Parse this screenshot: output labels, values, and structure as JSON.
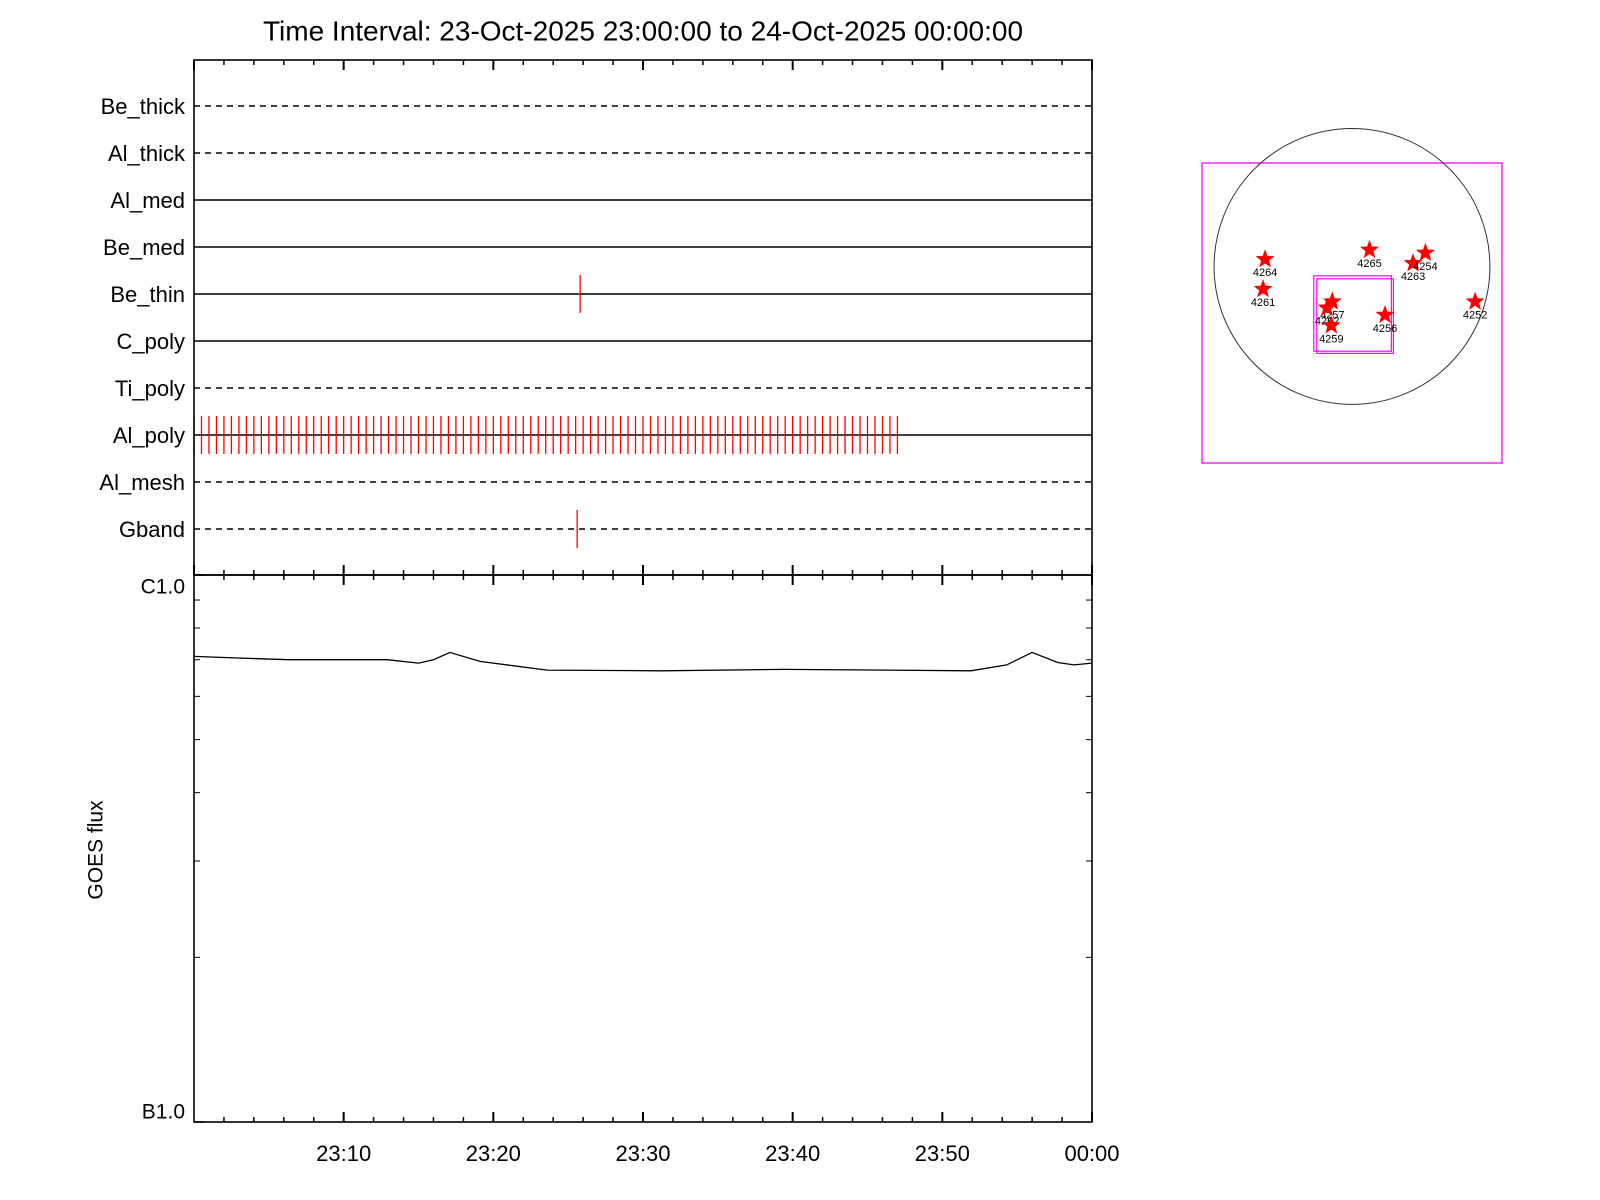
{
  "chart_data": [
    {
      "type": "timeline",
      "title": "Time Interval: 23-Oct-2025 23:00:00 to 24-Oct-2025 00:00:00",
      "categories": [
        "Be_thick",
        "Al_thick",
        "Al_med",
        "Be_med",
        "Be_thin",
        "C_poly",
        "Ti_poly",
        "Al_poly",
        "Al_mesh",
        "Gband"
      ],
      "line_styles": [
        "dashed",
        "dashed",
        "solid",
        "solid",
        "solid",
        "solid",
        "dashed",
        "solid",
        "dashed",
        "dashed"
      ],
      "events": [
        [],
        [],
        [],
        [],
        [
          25.8
        ],
        [],
        [],
        [
          0,
          0.5,
          1,
          1.5,
          2,
          2.5,
          3,
          3.5,
          4,
          4.5,
          5,
          5.5,
          6,
          6.5,
          7,
          7.5,
          8,
          8.5,
          9,
          9.5,
          10,
          10.5,
          11,
          11.5,
          12,
          12.5,
          13,
          13.5,
          14,
          14.5,
          15,
          15.5,
          16,
          16.5,
          17,
          17.5,
          18,
          18.5,
          19,
          19.5,
          20,
          20.5,
          21,
          21.5,
          22,
          22.5,
          23,
          23.5,
          24,
          24.5,
          25,
          25.5,
          26,
          26.5,
          27,
          27.5,
          28,
          28.5,
          29,
          29.5,
          30,
          30.5,
          31,
          31.5,
          32,
          32.5,
          33,
          33.5,
          34,
          34.5,
          35,
          35.5,
          36,
          36.5,
          37,
          37.5,
          38,
          38.5,
          39,
          39.5,
          40,
          40.5,
          41,
          41.5,
          42,
          42.5,
          43,
          43.5,
          44,
          44.5,
          45,
          45.5,
          46,
          46.5,
          47
        ],
        [],
        [
          25.6
        ]
      ],
      "event_color": "#ff0000",
      "xlim": [
        0,
        60
      ],
      "xticks": [
        0,
        10,
        20,
        30,
        40,
        50,
        60
      ],
      "x_minor_ticks": [
        2,
        4,
        6,
        8,
        12,
        14,
        16,
        18,
        22,
        24,
        26,
        28,
        32,
        34,
        36,
        38,
        42,
        44,
        46,
        48,
        52,
        54,
        56,
        58
      ]
    },
    {
      "type": "line",
      "ylabel": "GOES flux",
      "log_y": true,
      "color": "#000000",
      "x": [
        0,
        2.9,
        6.3,
        9.8,
        12.9,
        15,
        16,
        17.1,
        19.1,
        23.6,
        31.2,
        39.4,
        46.3,
        51.9,
        54.3,
        56,
        57.7,
        58.8,
        60
      ],
      "values": [
        7.1e-07,
        7.05e-07,
        7e-07,
        7e-07,
        7e-07,
        6.9e-07,
        7e-07,
        7.22e-07,
        6.95e-07,
        6.7e-07,
        6.68e-07,
        6.72e-07,
        6.7e-07,
        6.68e-07,
        6.85e-07,
        7.22e-07,
        6.92e-07,
        6.85e-07,
        6.9e-07
      ],
      "xlim": [
        0,
        60
      ],
      "xticks": [
        {
          "value": 10,
          "label": "23:10"
        },
        {
          "value": 20,
          "label": "23:20"
        },
        {
          "value": 30,
          "label": "23:30"
        },
        {
          "value": 40,
          "label": "23:40"
        },
        {
          "value": 50,
          "label": "23:50"
        },
        {
          "value": 60,
          "label": "00:00"
        }
      ],
      "x_minor_ticks": [
        2,
        4,
        6,
        8,
        12,
        14,
        16,
        18,
        22,
        24,
        26,
        28,
        32,
        34,
        36,
        38,
        42,
        44,
        46,
        48,
        52,
        54,
        56,
        58
      ],
      "ylim": [
        1e-07,
        1e-06
      ],
      "yticks": [
        {
          "value": 1e-06,
          "label": "C1.0"
        },
        {
          "value": 1e-07,
          "label": "B1.0"
        }
      ],
      "y_minor_ticks": [
        2e-07,
        3e-07,
        4e-07,
        5e-07,
        6e-07,
        7e-07,
        8e-07,
        9e-07
      ]
    },
    {
      "type": "map",
      "xlim": [
        -1044,
        1044
      ],
      "ylim": [
        -1368,
        720
      ],
      "sun_radius": 960,
      "frame_color": "#ff00ff",
      "star_color": "#ff0000",
      "fov": [
        {
          "x": [
            -266,
            274
          ],
          "y": [
            -65,
            -590
          ]
        },
        {
          "x": [
            -245,
            288
          ],
          "y": [
            -86,
            -605
          ]
        }
      ],
      "regions": [
        {
          "label": "4264",
          "x": -605,
          "y": 50
        },
        {
          "label": "4261",
          "x": -619,
          "y": -158
        },
        {
          "label": "4265",
          "x": 122,
          "y": 115
        },
        {
          "label": "4263",
          "x": 425,
          "y": 22
        },
        {
          "label": "4254",
          "x": 511,
          "y": 94
        },
        {
          "label": "4257",
          "x": -137,
          "y": -245
        },
        {
          "label": "4262",
          "x": -173,
          "y": -288
        },
        {
          "label": "4259",
          "x": -144,
          "y": -410
        },
        {
          "label": "4256",
          "x": 230,
          "y": -338
        },
        {
          "label": "4252",
          "x": 857,
          "y": -245
        }
      ]
    }
  ]
}
